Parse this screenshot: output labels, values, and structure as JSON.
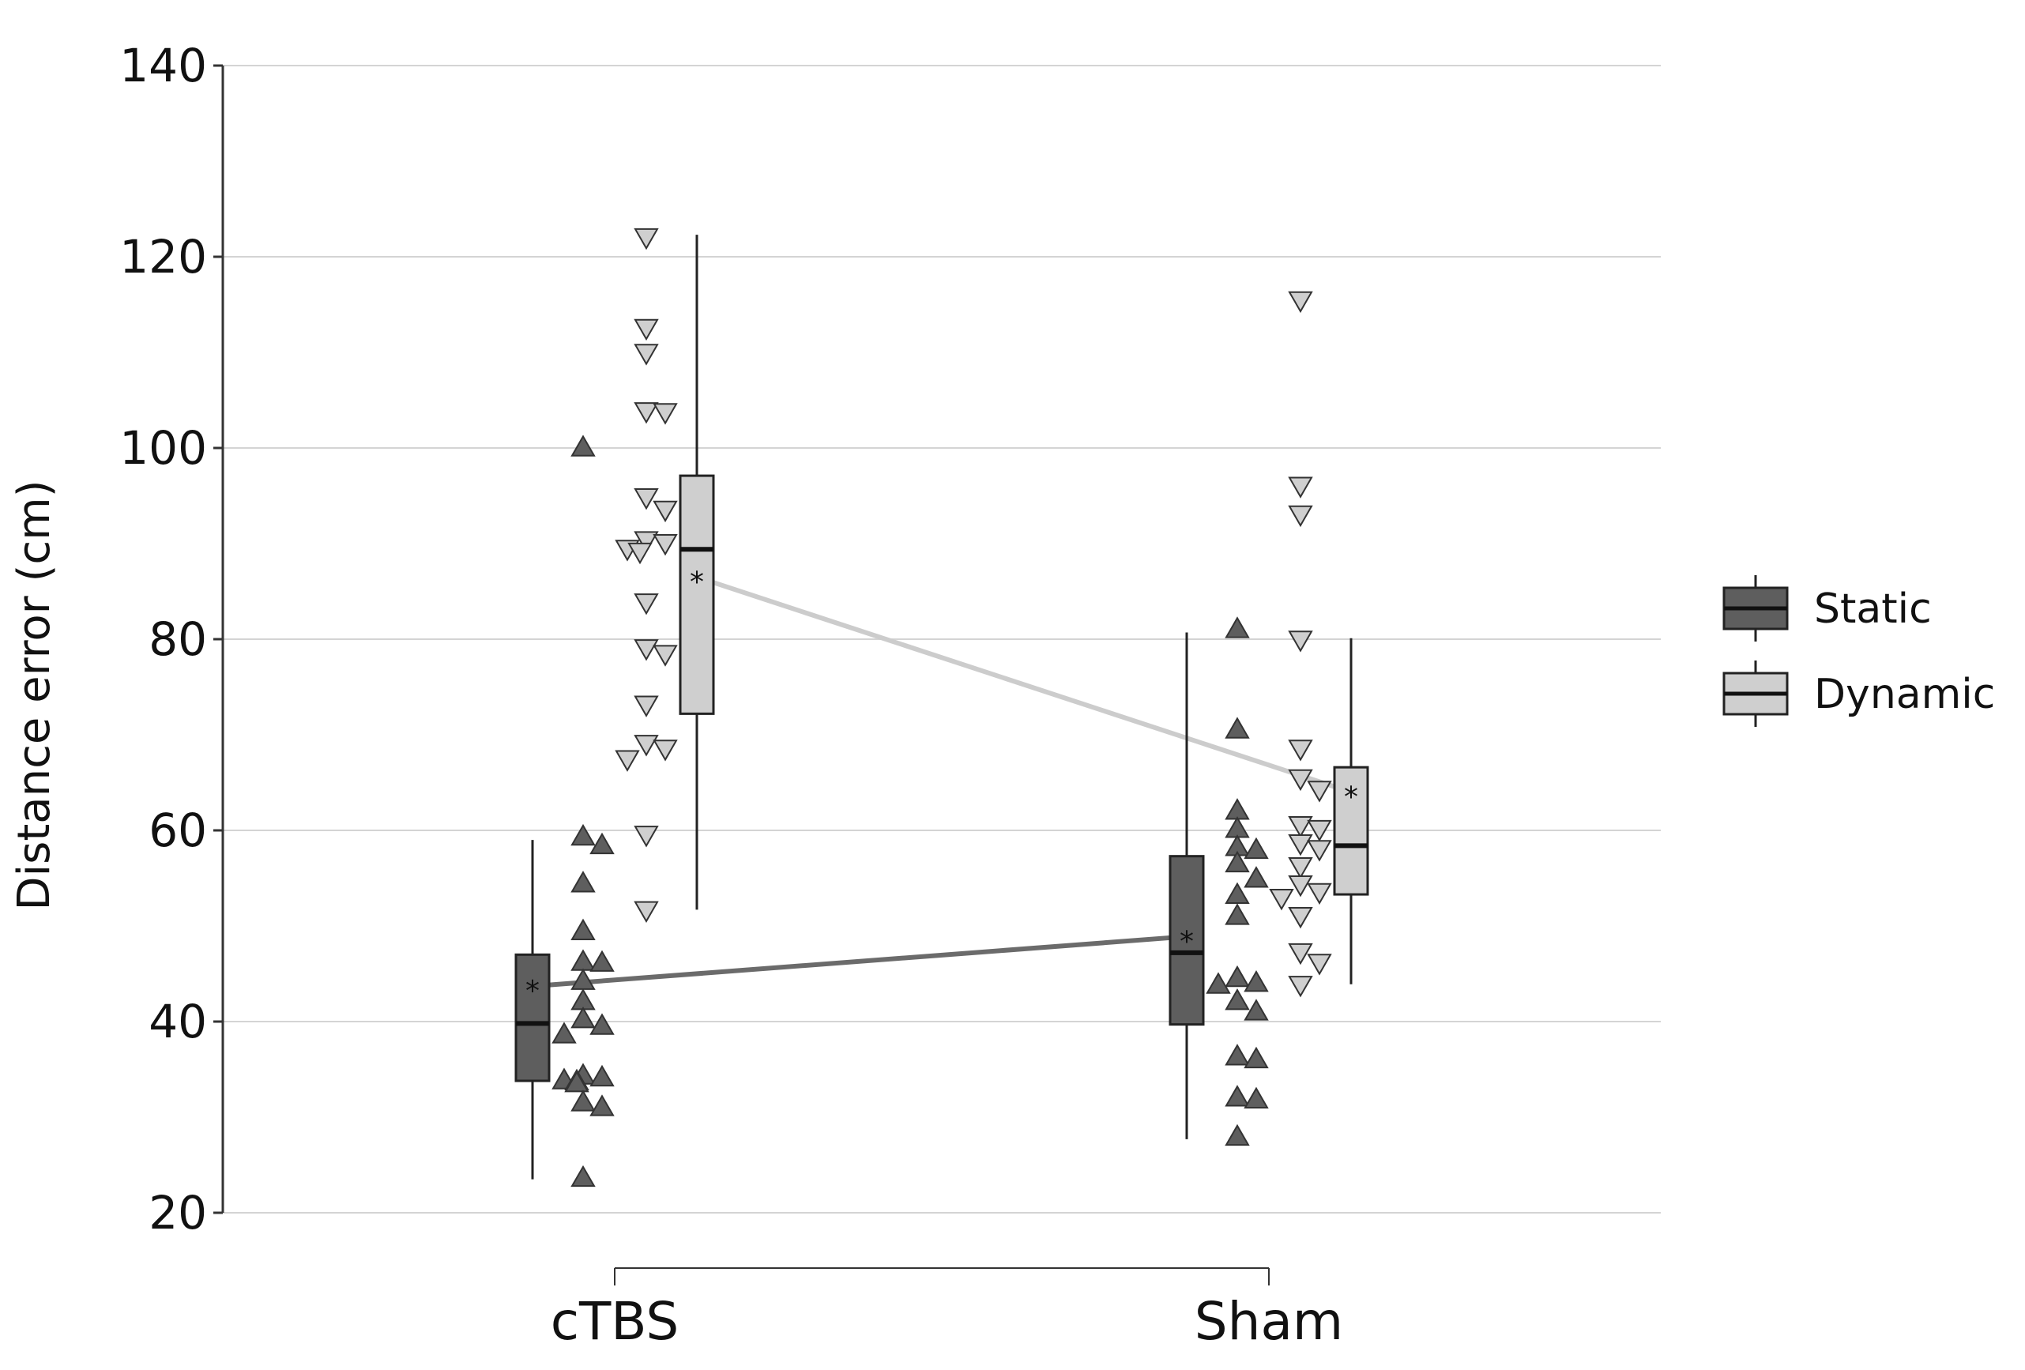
{
  "chart_data": {
    "type": "box",
    "title": "",
    "xlabel": "",
    "ylabel": "Distance error (cm)",
    "ylim": [
      20,
      140
    ],
    "yticks": [
      20,
      40,
      60,
      80,
      100,
      120,
      140
    ],
    "grid": true,
    "categories": [
      "cTBS",
      "Sham"
    ],
    "legend": {
      "placement": "right"
    },
    "colors": {
      "Static": "#5e5e5e",
      "Dynamic": "#cfcfcf",
      "Static_line": "#6b6b6b",
      "Dynamic_line": "#cccccc"
    },
    "series": [
      {
        "name": "Static",
        "marker": "triangle-up",
        "boxes": [
          {
            "category": "cTBS",
            "whisker_low": 23.5,
            "q1": 33.8,
            "median": 39.8,
            "q3": 47.0,
            "whisker_high": 59.0,
            "mean": 43.7
          },
          {
            "category": "Sham",
            "whisker_low": 27.7,
            "q1": 39.7,
            "median": 47.2,
            "q3": 57.3,
            "whisker_high": 80.7,
            "mean": 48.9
          }
        ],
        "points": [
          {
            "category": "cTBS",
            "values": [
              100,
              59.3,
              58.4,
              54.4,
              49.4,
              46.2,
              46.1,
              44.2,
              42.1,
              40.2,
              39.5,
              38.6,
              34.3,
              34.1,
              33.8,
              33.7,
              33.5,
              31.5,
              31.0,
              23.6
            ]
          },
          {
            "category": "Sham",
            "values": [
              81.0,
              70.5,
              62.0,
              60.1,
              58.2,
              57.9,
              56.5,
              54.9,
              53.2,
              51.0,
              44.5,
              44.0,
              43.8,
              42.1,
              41.0,
              36.3,
              36.0,
              32.0,
              31.8,
              27.9
            ]
          }
        ]
      },
      {
        "name": "Dynamic",
        "marker": "triangle-down",
        "boxes": [
          {
            "category": "cTBS",
            "whisker_low": 51.7,
            "q1": 72.2,
            "median": 89.4,
            "q3": 97.1,
            "whisker_high": 122.3,
            "mean": 86.5
          },
          {
            "category": "Sham",
            "whisker_low": 43.9,
            "q1": 53.3,
            "median": 58.4,
            "q3": 66.6,
            "whisker_high": 80.1,
            "mean": 64.0
          }
        ],
        "points": [
          {
            "category": "cTBS",
            "values": [
              122.1,
              112.6,
              110.0,
              103.9,
              103.8,
              94.9,
              93.6,
              90.4,
              90.1,
              89.5,
              89.2,
              83.9,
              79.1,
              78.5,
              73.2,
              69.1,
              68.6,
              67.5,
              59.6,
              51.7
            ]
          },
          {
            "category": "Sham",
            "values": [
              115.5,
              96.1,
              93.1,
              80.0,
              68.6,
              65.5,
              64.3,
              60.6,
              60.2,
              58.7,
              58.1,
              56.3,
              54.4,
              53.6,
              53.0,
              51.1,
              47.3,
              46.2,
              43.9
            ]
          }
        ]
      }
    ]
  }
}
